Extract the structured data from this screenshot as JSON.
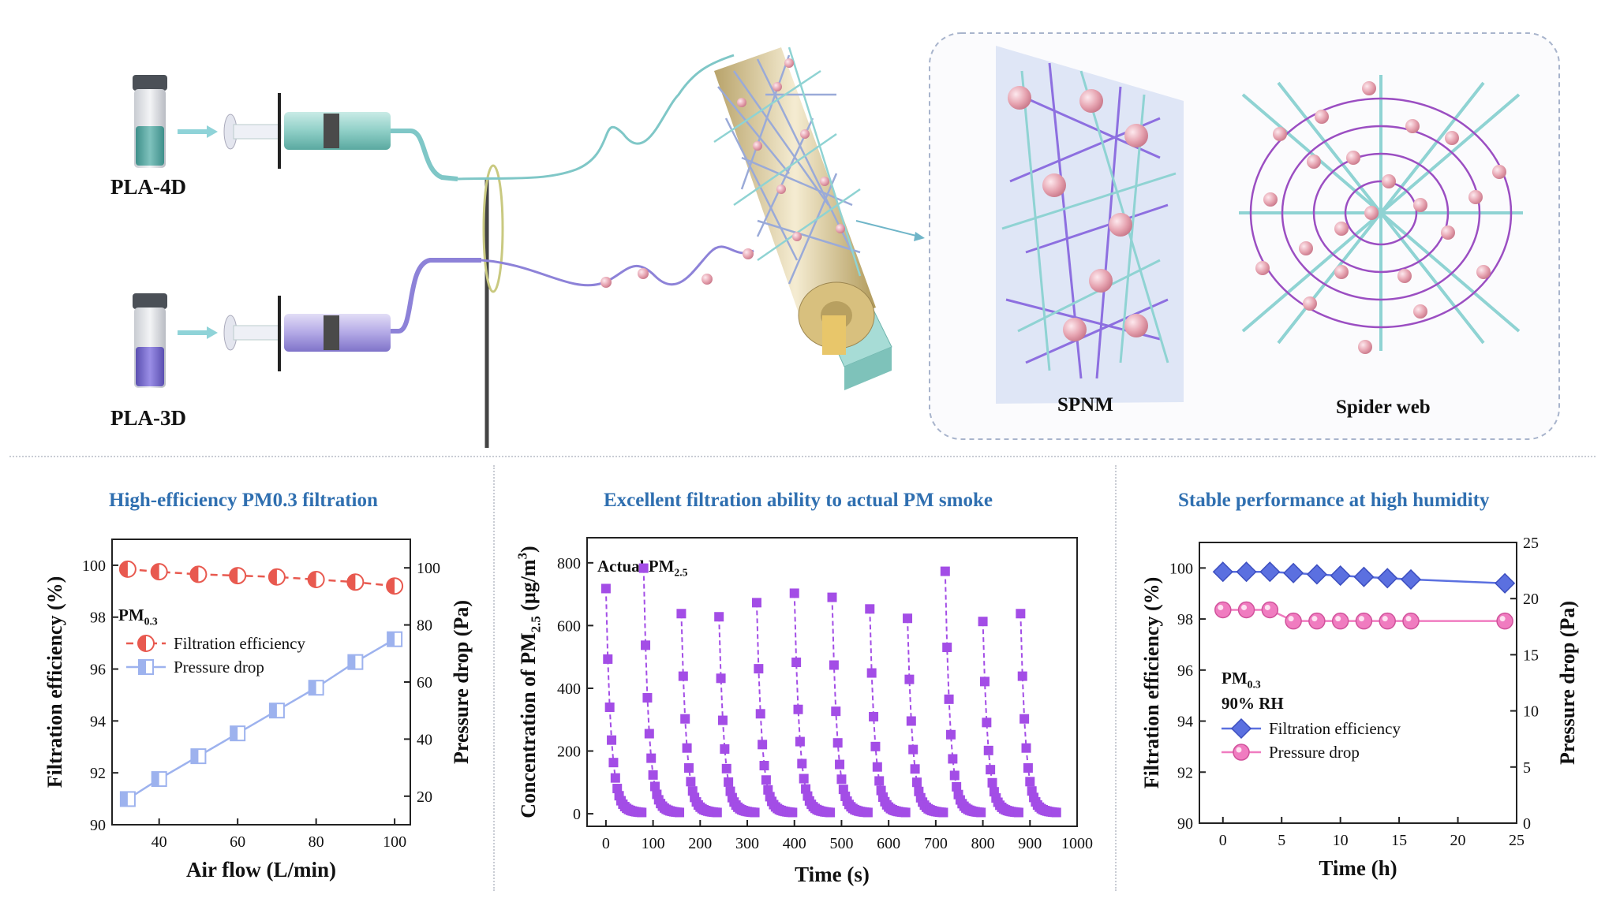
{
  "schematic": {
    "solution_top_label": "PLA-4D",
    "solution_bottom_label": "PLA-3D",
    "inset_left_label": "SPNM",
    "inset_right_label": "Spider web"
  },
  "colors": {
    "title_blue": "#2f6fb0",
    "red_series": "#e8594f",
    "blue_series": "#9db2ee",
    "purple_series": "#a34de6",
    "diamond_blue": "#5b70e0",
    "pink_series": "#f07cc0"
  },
  "chart_data": [
    {
      "id": "chart1",
      "type": "line",
      "title": "High-efficiency PM0.3 filtration",
      "xlabel": "Air flow (L/min)",
      "ylabel": "Filtration efficiency (%)",
      "y2label": "Pressure drop (Pa)",
      "annotation": "PM0.3",
      "xlim": [
        28,
        104
      ],
      "xticks": [
        40,
        60,
        80,
        100
      ],
      "ylim": [
        90,
        101
      ],
      "yticks": [
        90,
        92,
        94,
        96,
        98,
        100
      ],
      "y2lim": [
        10,
        110
      ],
      "y2ticks": [
        20,
        40,
        60,
        80,
        100
      ],
      "x": [
        32,
        40,
        50,
        60,
        70,
        80,
        90,
        100
      ],
      "series": [
        {
          "name": "Filtration efficiency",
          "axis": "left",
          "values": [
            99.85,
            99.75,
            99.65,
            99.6,
            99.55,
            99.45,
            99.35,
            99.2
          ]
        },
        {
          "name": "Pressure drop",
          "axis": "right",
          "values": [
            19,
            26,
            34,
            42,
            50,
            58,
            67,
            75
          ]
        }
      ]
    },
    {
      "id": "chart2",
      "type": "scatter",
      "title": "Excellent filtration ability to actual PM smoke",
      "xlabel": "Time (s)",
      "ylabel": "Concentration of PM2.5 (μg/m3)",
      "annotation": "Actual PM2.5",
      "xlim": [
        -40,
        1000
      ],
      "xticks": [
        0,
        100,
        200,
        300,
        400,
        500,
        600,
        700,
        800,
        900,
        1000
      ],
      "ylim": [
        -40,
        880
      ],
      "yticks": [
        0,
        200,
        400,
        600,
        800
      ],
      "cycle_starts": [
        0,
        80,
        160,
        240,
        320,
        400,
        480,
        560,
        640,
        720,
        800,
        880
      ],
      "cycle_peaks": [
        700,
        765,
        620,
        610,
        655,
        685,
        672,
        635,
        605,
        755,
        595,
        620
      ]
    },
    {
      "id": "chart3",
      "type": "line",
      "title": "Stable performance at high humidity",
      "xlabel": "Time (h)",
      "ylabel": "Filtration efficiency (%)",
      "y2label": "Pressure drop (Pa)",
      "annotation": "PM0.3",
      "annotation2": "90% RH",
      "xlim": [
        -2,
        25
      ],
      "xticks": [
        0,
        5,
        10,
        15,
        20,
        25
      ],
      "ylim": [
        90,
        101
      ],
      "yticks": [
        90,
        92,
        94,
        96,
        98,
        100
      ],
      "y2lim": [
        0,
        25
      ],
      "y2ticks": [
        0,
        5,
        10,
        15,
        20,
        25
      ],
      "x": [
        0,
        2,
        4,
        6,
        8,
        10,
        12,
        14,
        16,
        24
      ],
      "series": [
        {
          "name": "Filtration efficiency",
          "axis": "left",
          "values": [
            99.85,
            99.85,
            99.85,
            99.8,
            99.75,
            99.7,
            99.65,
            99.6,
            99.55,
            99.4
          ]
        },
        {
          "name": "Pressure drop",
          "axis": "right",
          "values": [
            19,
            19,
            19,
            18,
            18,
            18,
            18,
            18,
            18,
            18
          ]
        }
      ]
    }
  ]
}
